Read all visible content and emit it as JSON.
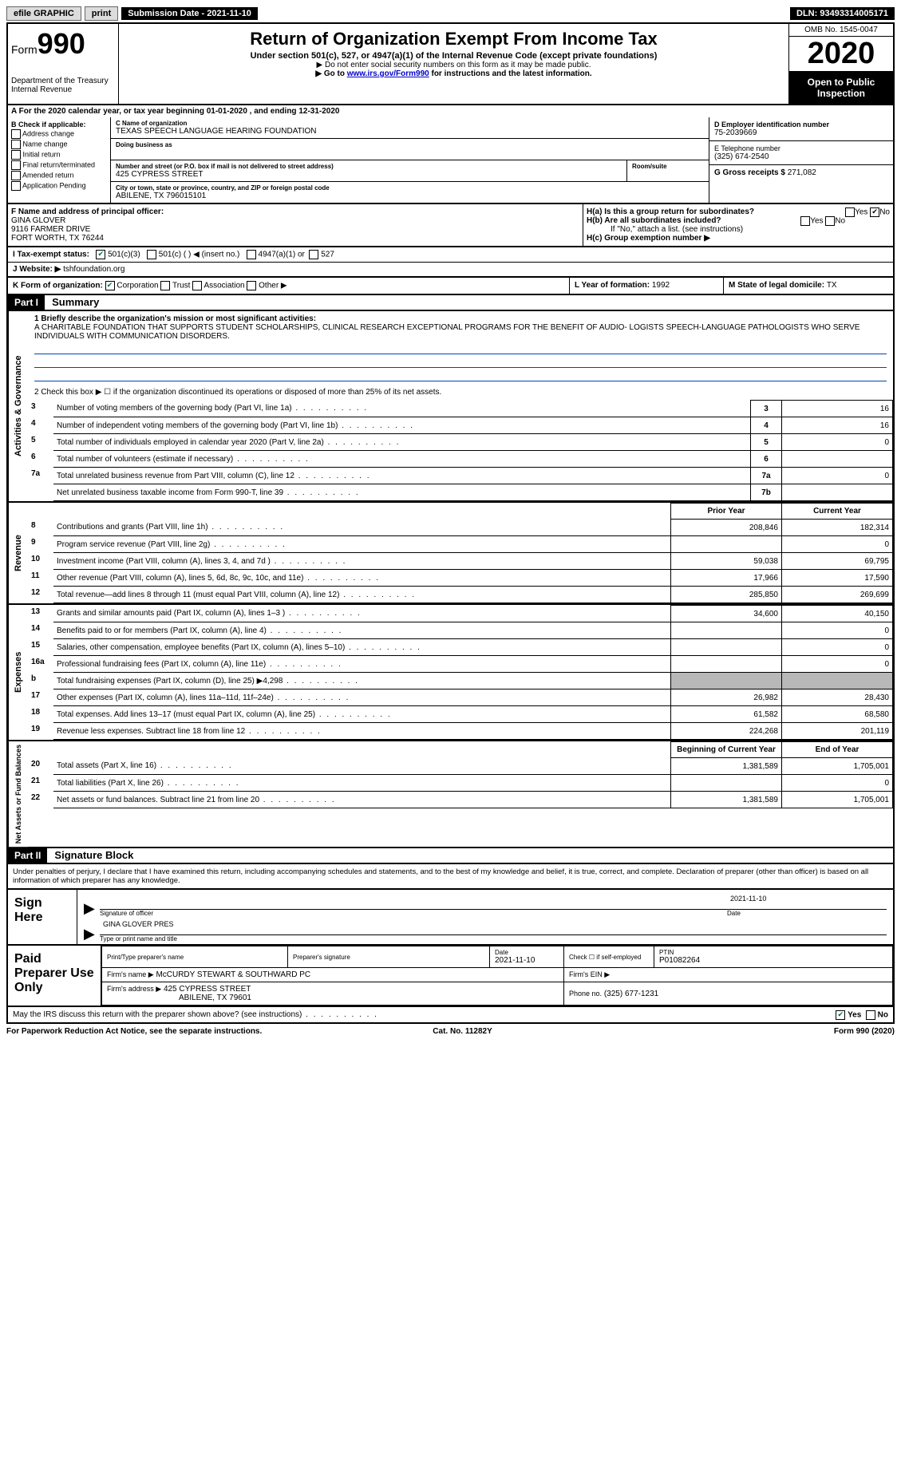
{
  "topbar": {
    "efile": "efile GRAPHIC",
    "print": "print",
    "submission": "Submission Date - 2021-11-10",
    "dln": "DLN: 93493314005171"
  },
  "header": {
    "form_label": "Form",
    "form_number": "990",
    "dept": "Department of the Treasury",
    "irs": "Internal Revenue",
    "title": "Return of Organization Exempt From Income Tax",
    "subtitle": "Under section 501(c), 527, or 4947(a)(1) of the Internal Revenue Code (except private foundations)",
    "note1": "▶ Do not enter social security numbers on this form as it may be made public.",
    "note2_pre": "▶ Go to ",
    "note2_link": "www.irs.gov/Form990",
    "note2_post": " for instructions and the latest information.",
    "omb": "OMB No. 1545-0047",
    "year": "2020",
    "inspect": "Open to Public Inspection"
  },
  "line_a": "A  For the 2020 calendar year, or tax year beginning 01-01-2020    , and ending 12-31-2020",
  "section_b": {
    "header": "B Check if applicable:",
    "items": [
      "Address change",
      "Name change",
      "Initial return",
      "Final return/terminated",
      "Amended return",
      "Application Pending"
    ]
  },
  "section_c": {
    "name_label": "C Name of organization",
    "name": "TEXAS SPEECH LANGUAGE HEARING FOUNDATION",
    "dba_label": "Doing business as",
    "addr_label": "Number and street (or P.O. box if mail is not delivered to street address)",
    "addr": "425 CYPRESS STREET",
    "room_label": "Room/suite",
    "city_label": "City or town, state or province, country, and ZIP or foreign postal code",
    "city": "ABILENE, TX  796015101"
  },
  "section_d": {
    "ein_label": "D Employer identification number",
    "ein": "75-2039669",
    "tel_label": "E Telephone number",
    "tel": "(325) 674-2540",
    "gross_label": "G Gross receipts $",
    "gross": "271,082"
  },
  "section_f": {
    "label": "F Name and address of principal officer:",
    "name": "GINA GLOVER",
    "addr1": "9116 FARMER DRIVE",
    "addr2": "FORT WORTH, TX  76244"
  },
  "section_h": {
    "ha": "H(a)  Is this a group return for subordinates?",
    "hb": "H(b)  Are all subordinates included?",
    "hb_note": "If \"No,\" attach a list. (see instructions)",
    "hc": "H(c)  Group exemption number ▶",
    "yes": "Yes",
    "no": "No"
  },
  "section_i": {
    "label": "I    Tax-exempt status:",
    "opt1": "501(c)(3)",
    "opt2": "501(c) (  ) ◀ (insert no.)",
    "opt3": "4947(a)(1) or",
    "opt4": "527"
  },
  "section_j": {
    "label": "J   Website: ▶",
    "val": "tshfoundation.org"
  },
  "section_k": {
    "label": "K Form of organization:",
    "opts": [
      "Corporation",
      "Trust",
      "Association",
      "Other ▶"
    ],
    "l_label": "L Year of formation: ",
    "l_val": "1992",
    "m_label": "M State of legal domicile: ",
    "m_val": "TX"
  },
  "part1": {
    "header": "Part I",
    "title": "Summary",
    "line1_label": "1  Briefly describe the organization's mission or most significant activities:",
    "mission": "A CHARITABLE FOUNDATION THAT SUPPORTS STUDENT SCHOLARSHIPS, CLINICAL RESEARCH EXCEPTIONAL PROGRAMS FOR THE BENEFIT OF AUDIO- LOGISTS SPEECH-LANGUAGE PATHOLOGISTS WHO SERVE INDIVIDUALS WITH COMMUNICATION DISORDERS.",
    "line2": "2   Check this box ▶ ☐  if the organization discontinued its operations or disposed of more than 25% of its net assets.",
    "vtab_gov": "Activities & Governance",
    "vtab_rev": "Revenue",
    "vtab_exp": "Expenses",
    "vtab_net": "Net Assets or Fund Balances",
    "rows_simple": [
      {
        "n": "3",
        "desc": "Number of voting members of the governing body (Part VI, line 1a)",
        "box": "3",
        "val": "16"
      },
      {
        "n": "4",
        "desc": "Number of independent voting members of the governing body (Part VI, line 1b)",
        "box": "4",
        "val": "16"
      },
      {
        "n": "5",
        "desc": "Total number of individuals employed in calendar year 2020 (Part V, line 2a)",
        "box": "5",
        "val": "0"
      },
      {
        "n": "6",
        "desc": "Total number of volunteers (estimate if necessary)",
        "box": "6",
        "val": ""
      },
      {
        "n": "7a",
        "desc": "Total unrelated business revenue from Part VIII, column (C), line 12",
        "box": "7a",
        "val": "0"
      },
      {
        "n": "",
        "desc": "Net unrelated business taxable income from Form 990-T, line 39",
        "box": "7b",
        "val": ""
      }
    ],
    "col_headers": {
      "prior": "Prior Year",
      "current": "Current Year",
      "boy": "Beginning of Current Year",
      "eoy": "End of Year"
    },
    "rows_rev": [
      {
        "n": "8",
        "desc": "Contributions and grants (Part VIII, line 1h)",
        "p": "208,846",
        "c": "182,314"
      },
      {
        "n": "9",
        "desc": "Program service revenue (Part VIII, line 2g)",
        "p": "",
        "c": "0"
      },
      {
        "n": "10",
        "desc": "Investment income (Part VIII, column (A), lines 3, 4, and 7d )",
        "p": "59,038",
        "c": "69,795"
      },
      {
        "n": "11",
        "desc": "Other revenue (Part VIII, column (A), lines 5, 6d, 8c, 9c, 10c, and 11e)",
        "p": "17,966",
        "c": "17,590"
      },
      {
        "n": "12",
        "desc": "Total revenue—add lines 8 through 11 (must equal Part VIII, column (A), line 12)",
        "p": "285,850",
        "c": "269,699"
      }
    ],
    "rows_exp": [
      {
        "n": "13",
        "desc": "Grants and similar amounts paid (Part IX, column (A), lines 1–3 )",
        "p": "34,600",
        "c": "40,150"
      },
      {
        "n": "14",
        "desc": "Benefits paid to or for members (Part IX, column (A), line 4)",
        "p": "",
        "c": "0"
      },
      {
        "n": "15",
        "desc": "Salaries, other compensation, employee benefits (Part IX, column (A), lines 5–10)",
        "p": "",
        "c": "0"
      },
      {
        "n": "16a",
        "desc": "Professional fundraising fees (Part IX, column (A), line 11e)",
        "p": "",
        "c": "0"
      },
      {
        "n": "b",
        "desc": "Total fundraising expenses (Part IX, column (D), line 25) ▶4,298",
        "p": "GRAY",
        "c": "GRAY"
      },
      {
        "n": "17",
        "desc": "Other expenses (Part IX, column (A), lines 11a–11d, 11f–24e)",
        "p": "26,982",
        "c": "28,430"
      },
      {
        "n": "18",
        "desc": "Total expenses. Add lines 13–17 (must equal Part IX, column (A), line 25)",
        "p": "61,582",
        "c": "68,580"
      },
      {
        "n": "19",
        "desc": "Revenue less expenses. Subtract line 18 from line 12",
        "p": "224,268",
        "c": "201,119"
      }
    ],
    "rows_net": [
      {
        "n": "20",
        "desc": "Total assets (Part X, line 16)",
        "p": "1,381,589",
        "c": "1,705,001"
      },
      {
        "n": "21",
        "desc": "Total liabilities (Part X, line 26)",
        "p": "",
        "c": "0"
      },
      {
        "n": "22",
        "desc": "Net assets or fund balances. Subtract line 21 from line 20",
        "p": "1,381,589",
        "c": "1,705,001"
      }
    ]
  },
  "part2": {
    "header": "Part II",
    "title": "Signature Block",
    "penalty": "Under penalties of perjury, I declare that I have examined this return, including accompanying schedules and statements, and to the best of my knowledge and belief, it is true, correct, and complete. Declaration of preparer (other than officer) is based on all information of which preparer has any knowledge.",
    "sign_here": "Sign Here",
    "sig_officer": "Signature of officer",
    "sig_date": "2021-11-10",
    "date_label": "Date",
    "officer_name": "GINA GLOVER  PRES",
    "officer_caption": "Type or print name and title",
    "paid_label": "Paid Preparer Use Only",
    "prep_name_label": "Print/Type preparer's name",
    "prep_sig_label": "Preparer's signature",
    "prep_date_label": "Date",
    "prep_date": "2021-11-10",
    "check_if": "Check ☐ if self-employed",
    "ptin_label": "PTIN",
    "ptin": "P01082264",
    "firm_name_label": "Firm's name    ▶",
    "firm_name": "McCURDY STEWART & SOUTHWARD PC",
    "firm_ein_label": "Firm's EIN ▶",
    "firm_addr_label": "Firm's address ▶",
    "firm_addr1": "425 CYPRESS STREET",
    "firm_addr2": "ABILENE, TX  79601",
    "phone_label": "Phone no.",
    "phone": "(325) 677-1231",
    "discuss": "May the IRS discuss this return with the preparer shown above? (see instructions)",
    "yes": "Yes",
    "no": "No"
  },
  "footer": {
    "left": "For Paperwork Reduction Act Notice, see the separate instructions.",
    "center": "Cat. No. 11282Y",
    "right": "Form 990 (2020)"
  }
}
